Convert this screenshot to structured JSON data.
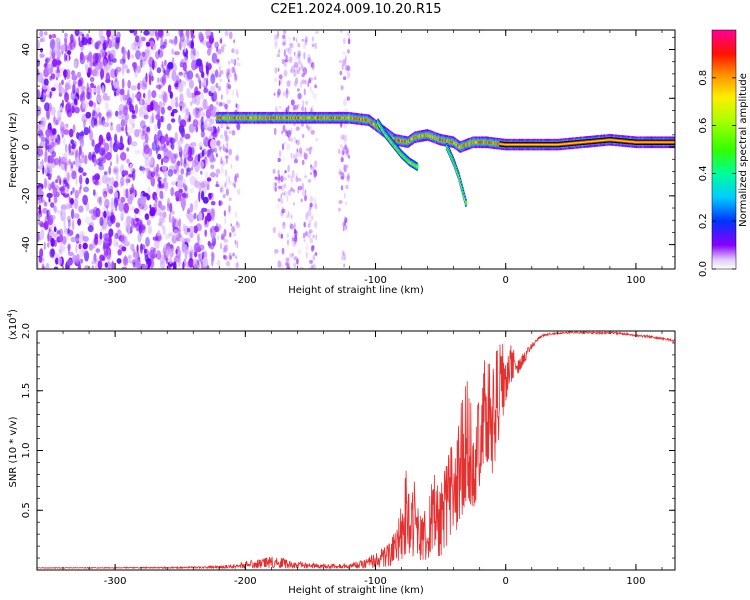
{
  "title": "C2E1.2024.009.10.20.R15",
  "colors": {
    "ridge": "#000000",
    "snr_line": "#e53030",
    "noise_purple": "#7a1fe0"
  },
  "chart_data": [
    {
      "type": "heatmap",
      "panel": "spectrogram",
      "xlabel": "Height of straight line (km)",
      "ylabel": "Frequency (Hz)",
      "xlim": [
        -360,
        130
      ],
      "ylim": [
        -50,
        48
      ],
      "x_ticks": [
        -300,
        -200,
        -100,
        0,
        100
      ],
      "x_tick_labels": [
        "-300",
        "-200",
        "-100",
        "0",
        "100"
      ],
      "y_ticks": [
        -40,
        -20,
        0,
        20,
        40
      ],
      "y_tick_labels": [
        "-40",
        "-20",
        "0",
        "20",
        "40"
      ],
      "colorbar": {
        "label": "Normalized spectral amplitude",
        "range": [
          0,
          1
        ],
        "ticks": [
          0.0,
          0.2,
          0.4,
          0.6,
          0.8
        ],
        "tick_labels": [
          "0.0",
          "0.2",
          "0.4",
          "0.6",
          "0.8"
        ]
      },
      "noise_region_km": [
        -360,
        -222
      ],
      "noise_bands_km": [
        [
          -222,
          -205
        ],
        [
          -178,
          -145
        ],
        [
          -128,
          -120
        ]
      ],
      "ridge": {
        "x": [
          -222,
          -200,
          -180,
          -160,
          -140,
          -120,
          -105,
          -95,
          -85,
          -75,
          -70,
          -60,
          -50,
          -40,
          -35,
          -25,
          -15,
          0,
          20,
          40,
          60,
          80,
          100,
          130
        ],
        "y": [
          12,
          12,
          12,
          12,
          12,
          12,
          11,
          7,
          3,
          2,
          4,
          5,
          3,
          2,
          0,
          2,
          2,
          1,
          1,
          1,
          2,
          3,
          2,
          2
        ]
      },
      "side_branches": [
        {
          "x": [
            -98,
            -92,
            -86,
            -80,
            -74,
            -68
          ],
          "y": [
            10,
            5,
            1,
            -3,
            -6,
            -8
          ]
        },
        {
          "x": [
            -45,
            -40,
            -36,
            -33,
            -30
          ],
          "y": [
            0,
            -6,
            -12,
            -18,
            -24
          ]
        }
      ],
      "grid": false,
      "legend": "none"
    },
    {
      "type": "line",
      "panel": "snr",
      "xlabel": "Height of straight line (km)",
      "ylabel": "SNR (10 * v/v)",
      "y_multiplier_label": "(x10",
      "y_multiplier_exponent": "4",
      "y_multiplier_close": ")",
      "xlim": [
        -360,
        130
      ],
      "ylim": [
        0,
        20000
      ],
      "x_ticks": [
        -300,
        -200,
        -100,
        0,
        100
      ],
      "x_tick_labels": [
        "-300",
        "-200",
        "-100",
        "0",
        "100"
      ],
      "y_ticks": [
        5000,
        10000,
        15000,
        20000
      ],
      "y_tick_labels": [
        "0.5",
        "1.0",
        "1.5",
        "2.0"
      ],
      "series": [
        {
          "envelope_x": [
            -360,
            -260,
            -230,
            -210,
            -195,
            -185,
            -175,
            -160,
            -140,
            -120,
            -110,
            -100,
            -90,
            -80,
            -75,
            -70,
            -65,
            -60,
            -55,
            -50,
            -45,
            -40,
            -35,
            -30,
            -25,
            -20,
            -15,
            -10,
            -5,
            0,
            5,
            10,
            15,
            20,
            25,
            30,
            40,
            50,
            60,
            70,
            80,
            90,
            100,
            110,
            120,
            130
          ],
          "envelope_y": [
            200,
            250,
            300,
            500,
            800,
            1100,
            1200,
            700,
            500,
            600,
            800,
            1500,
            2200,
            5500,
            10500,
            7500,
            4500,
            6000,
            8000,
            7000,
            9500,
            11500,
            14500,
            16000,
            14000,
            16500,
            18000,
            17000,
            19500,
            18500,
            19000,
            17500,
            18500,
            19000,
            19500,
            19800,
            19900,
            19950,
            19950,
            19900,
            19950,
            19850,
            19700,
            19650,
            19500,
            19300
          ],
          "floor_y": [
            150,
            150,
            150,
            150,
            150,
            150,
            150,
            150,
            150,
            150,
            150,
            150,
            300,
            500,
            1500,
            1000,
            800,
            800,
            1500,
            1000,
            2000,
            2500,
            4000,
            6000,
            5000,
            7000,
            9000,
            8000,
            11000,
            14000,
            16000,
            16500,
            17500,
            18500,
            19300,
            19600,
            19750,
            19800,
            19800,
            19750,
            19800,
            19700,
            19550,
            19450,
            19300,
            19100
          ]
        }
      ],
      "grid": false,
      "legend": "none"
    }
  ]
}
